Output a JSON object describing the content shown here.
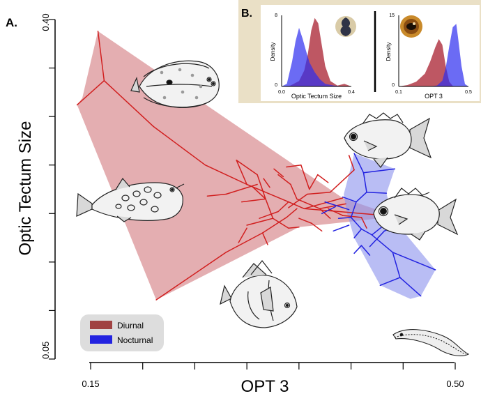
{
  "panel_a_label": "A.",
  "panel_b_label": "B.",
  "chart_data": [
    {
      "type": "scatter",
      "title": "",
      "xlabel": "OPT 3",
      "ylabel": "Optic Tectum Size",
      "x_tick_labels": [
        "0.15",
        "0.50"
      ],
      "y_tick_labels": [
        "0.40",
        "0.05"
      ],
      "xlim": [
        0.15,
        0.5
      ],
      "ylim": [
        0.05,
        0.4
      ],
      "legend": {
        "placement": "bottom-left",
        "entries": [
          "Diurnal",
          "Nocturnal"
        ]
      },
      "colors": {
        "Diurnal": "#d11f1f",
        "Nocturnal": "#2222e0",
        "diurnal_hull": "#d98f93",
        "nocturnal_hull": "#8e95ee",
        "legend_bg": "#dddddd",
        "diurnal_swatch": "#a04242"
      },
      "series": [
        {
          "name": "Diurnal",
          "hull": [
            [
              0.157,
              0.388
            ],
            [
              0.392,
              0.216
            ],
            [
              0.444,
              0.197
            ],
            [
              0.35,
              0.186
            ],
            [
              0.213,
              0.111
            ],
            [
              0.137,
              0.312
            ],
            [
              0.142,
              0.319
            ]
          ],
          "branches": [
            [
              [
                0.157,
                0.388
              ],
              [
                0.163,
                0.337
              ]
            ],
            [
              [
                0.163,
                0.337
              ],
              [
                0.137,
                0.312
              ]
            ],
            [
              [
                0.163,
                0.337
              ],
              [
                0.21,
                0.29
              ]
            ],
            [
              [
                0.21,
                0.29
              ],
              [
                0.26,
                0.25
              ]
            ],
            [
              [
                0.26,
                0.25
              ],
              [
                0.3,
                0.23
              ]
            ],
            [
              [
                0.3,
                0.23
              ],
              [
                0.34,
                0.212
              ]
            ],
            [
              [
                0.34,
                0.212
              ],
              [
                0.355,
                0.205
              ]
            ],
            [
              [
                0.355,
                0.205
              ],
              [
                0.392,
                0.216
              ]
            ],
            [
              [
                0.355,
                0.205
              ],
              [
                0.444,
                0.197
              ]
            ],
            [
              [
                0.3,
                0.23
              ],
              [
                0.29,
                0.255
              ]
            ],
            [
              [
                0.29,
                0.255
              ],
              [
                0.31,
                0.24
              ]
            ],
            [
              [
                0.31,
                0.24
              ],
              [
                0.318,
                0.215
              ]
            ],
            [
              [
                0.318,
                0.215
              ],
              [
                0.295,
                0.212
              ]
            ],
            [
              [
                0.318,
                0.215
              ],
              [
                0.325,
                0.195
              ]
            ],
            [
              [
                0.325,
                0.195
              ],
              [
                0.3,
                0.188
              ]
            ],
            [
              [
                0.325,
                0.195
              ],
              [
                0.34,
                0.185
              ]
            ],
            [
              [
                0.34,
                0.185
              ],
              [
                0.35,
                0.186
              ]
            ],
            [
              [
                0.33,
                0.24
              ],
              [
                0.342,
                0.23
              ]
            ],
            [
              [
                0.342,
                0.23
              ],
              [
                0.348,
                0.215
              ]
            ],
            [
              [
                0.348,
                0.215
              ],
              [
                0.37,
                0.205
              ]
            ],
            [
              [
                0.37,
                0.205
              ],
              [
                0.38,
                0.195
              ]
            ],
            [
              [
                0.37,
                0.205
              ],
              [
                0.395,
                0.21
              ]
            ],
            [
              [
                0.31,
                0.23
              ],
              [
                0.28,
                0.22
              ]
            ],
            [
              [
                0.28,
                0.22
              ],
              [
                0.262,
                0.218
              ]
            ],
            [
              [
                0.34,
                0.212
              ],
              [
                0.33,
                0.202
              ]
            ],
            [
              [
                0.33,
                0.202
              ],
              [
                0.312,
                0.195
              ]
            ],
            [
              [
                0.36,
                0.225
              ],
              [
                0.368,
                0.24
              ]
            ],
            [
              [
                0.368,
                0.24
              ],
              [
                0.378,
                0.232
              ]
            ],
            [
              [
                0.36,
                0.225
              ],
              [
                0.352,
                0.25
              ]
            ],
            [
              [
                0.352,
                0.25
              ],
              [
                0.338,
                0.248
              ]
            ],
            [
              [
                0.318,
                0.215
              ],
              [
                0.305,
                0.228
              ]
            ],
            [
              [
                0.35,
                0.195
              ],
              [
                0.362,
                0.19
              ]
            ],
            [
              [
                0.362,
                0.19
              ],
              [
                0.372,
                0.182
              ]
            ],
            [
              [
                0.213,
                0.111
              ],
              [
                0.28,
                0.16
              ]
            ],
            [
              [
                0.28,
                0.16
              ],
              [
                0.315,
                0.18
              ]
            ],
            [
              [
                0.315,
                0.18
              ],
              [
                0.338,
                0.196
              ]
            ],
            [
              [
                0.338,
                0.196
              ],
              [
                0.348,
                0.205
              ]
            ],
            [
              [
                0.3,
                0.185
              ],
              [
                0.292,
                0.17
              ]
            ],
            [
              [
                0.315,
                0.18
              ],
              [
                0.32,
                0.168
              ]
            ],
            [
              [
                0.34,
                0.206
              ],
              [
                0.358,
                0.22
              ]
            ],
            [
              [
                0.358,
                0.22
              ],
              [
                0.38,
                0.222
              ]
            ],
            [
              [
                0.38,
                0.222
              ],
              [
                0.403,
                0.245
              ]
            ],
            [
              [
                0.403,
                0.245
              ],
              [
                0.398,
                0.26
              ]
            ],
            [
              [
                0.378,
                0.205
              ],
              [
                0.392,
                0.198
              ]
            ],
            [
              [
                0.392,
                0.198
              ],
              [
                0.41,
                0.196
              ]
            ],
            [
              [
                0.41,
                0.196
              ],
              [
                0.415,
                0.185
              ]
            ],
            [
              [
                0.322,
                0.227
              ],
              [
                0.316,
                0.236
              ]
            ],
            [
              [
                0.335,
                0.238
              ],
              [
                0.326,
                0.246
              ]
            ]
          ]
        },
        {
          "name": "Nocturnal",
          "hull": [
            [
              0.403,
              0.262
            ],
            [
              0.442,
              0.246
            ],
            [
              0.434,
              0.221
            ],
            [
              0.44,
              0.195
            ],
            [
              0.481,
              0.142
            ],
            [
              0.467,
              0.115
            ],
            [
              0.457,
              0.112
            ],
            [
              0.428,
              0.126
            ],
            [
              0.403,
              0.175
            ],
            [
              0.396,
              0.201
            ],
            [
              0.393,
              0.22
            ],
            [
              0.398,
              0.24
            ]
          ],
          "branches": [
            [
              [
                0.403,
                0.262
              ],
              [
                0.412,
                0.242
              ]
            ],
            [
              [
                0.412,
                0.242
              ],
              [
                0.442,
                0.246
              ]
            ],
            [
              [
                0.412,
                0.242
              ],
              [
                0.415,
                0.222
              ]
            ],
            [
              [
                0.415,
                0.222
              ],
              [
                0.434,
                0.221
              ]
            ],
            [
              [
                0.415,
                0.222
              ],
              [
                0.405,
                0.212
              ]
            ],
            [
              [
                0.405,
                0.212
              ],
              [
                0.392,
                0.217
              ]
            ],
            [
              [
                0.405,
                0.212
              ],
              [
                0.4,
                0.196
              ]
            ],
            [
              [
                0.4,
                0.196
              ],
              [
                0.388,
                0.195
              ]
            ],
            [
              [
                0.4,
                0.196
              ],
              [
                0.41,
                0.184
              ]
            ],
            [
              [
                0.41,
                0.184
              ],
              [
                0.403,
                0.175
              ]
            ],
            [
              [
                0.41,
                0.184
              ],
              [
                0.42,
                0.178
              ]
            ],
            [
              [
                0.42,
                0.178
              ],
              [
                0.44,
                0.195
              ]
            ],
            [
              [
                0.42,
                0.178
              ],
              [
                0.44,
                0.16
              ]
            ],
            [
              [
                0.44,
                0.16
              ],
              [
                0.481,
                0.142
              ]
            ],
            [
              [
                0.44,
                0.16
              ],
              [
                0.447,
                0.134
              ]
            ],
            [
              [
                0.447,
                0.134
              ],
              [
                0.428,
                0.126
              ]
            ],
            [
              [
                0.447,
                0.134
              ],
              [
                0.467,
                0.115
              ]
            ],
            [
              [
                0.432,
                0.182
              ],
              [
                0.418,
                0.166
              ]
            ],
            [
              [
                0.432,
                0.182
              ],
              [
                0.446,
                0.188
              ]
            ],
            [
              [
                0.398,
                0.188
              ],
              [
                0.383,
                0.182
              ]
            ],
            [
              [
                0.41,
                0.167
              ],
              [
                0.403,
                0.159
              ]
            ],
            [
              [
                0.41,
                0.167
              ],
              [
                0.418,
                0.157
              ]
            ],
            [
              [
                0.398,
                0.204
              ],
              [
                0.375,
                0.212
              ]
            ],
            [
              [
                0.385,
                0.207
              ],
              [
                0.372,
                0.2
              ]
            ]
          ]
        }
      ]
    },
    {
      "type": "area",
      "xlabel": "Optic Tectum Size",
      "ylabel": "Density",
      "x_tick_labels": [
        "0.0",
        "0.4"
      ],
      "y_tick_labels": [
        "0",
        "8"
      ],
      "xlim": [
        0.0,
        0.4
      ],
      "ylim": [
        0,
        8
      ],
      "series": [
        {
          "name": "Diurnal",
          "x": [
            0.0,
            0.05,
            0.1,
            0.13,
            0.15,
            0.17,
            0.19,
            0.21,
            0.23,
            0.25,
            0.28,
            0.32,
            0.36,
            0.4
          ],
          "values": [
            0,
            0.1,
            0.6,
            1.8,
            3.6,
            6.3,
            7.7,
            7.1,
            4.7,
            2.3,
            0.6,
            0.1,
            0.3,
            0
          ]
        },
        {
          "name": "Nocturnal",
          "x": [
            0.0,
            0.03,
            0.06,
            0.08,
            0.1,
            0.12,
            0.14,
            0.16,
            0.19,
            0.22,
            0.25,
            0.3,
            0.35,
            0.4
          ],
          "values": [
            0,
            0.3,
            2.8,
            5.1,
            6.6,
            5.4,
            4.0,
            2.7,
            1.6,
            0.8,
            0.3,
            0.1,
            0,
            0
          ]
        }
      ]
    },
    {
      "type": "area",
      "xlabel": "OPT 3",
      "ylabel": "Density",
      "x_tick_labels": [
        "0.1",
        "0.5"
      ],
      "y_tick_labels": [
        "0",
        "15"
      ],
      "xlim": [
        0.1,
        0.5
      ],
      "ylim": [
        0,
        15
      ],
      "series": [
        {
          "name": "Diurnal",
          "x": [
            0.1,
            0.15,
            0.2,
            0.25,
            0.28,
            0.31,
            0.33,
            0.35,
            0.37,
            0.39,
            0.41,
            0.43,
            0.45,
            0.5
          ],
          "values": [
            0,
            0.3,
            1.0,
            2.7,
            5.2,
            8.3,
            10.0,
            8.8,
            4.2,
            1.0,
            0.1,
            0,
            0,
            0
          ]
        },
        {
          "name": "Nocturnal",
          "x": [
            0.1,
            0.2,
            0.28,
            0.32,
            0.35,
            0.37,
            0.39,
            0.41,
            0.43,
            0.44,
            0.46,
            0.48,
            0.5
          ],
          "values": [
            0,
            0,
            0,
            0.2,
            1.2,
            4.0,
            8.5,
            12.5,
            13.2,
            10.4,
            4.3,
            0.5,
            0
          ]
        }
      ]
    }
  ]
}
